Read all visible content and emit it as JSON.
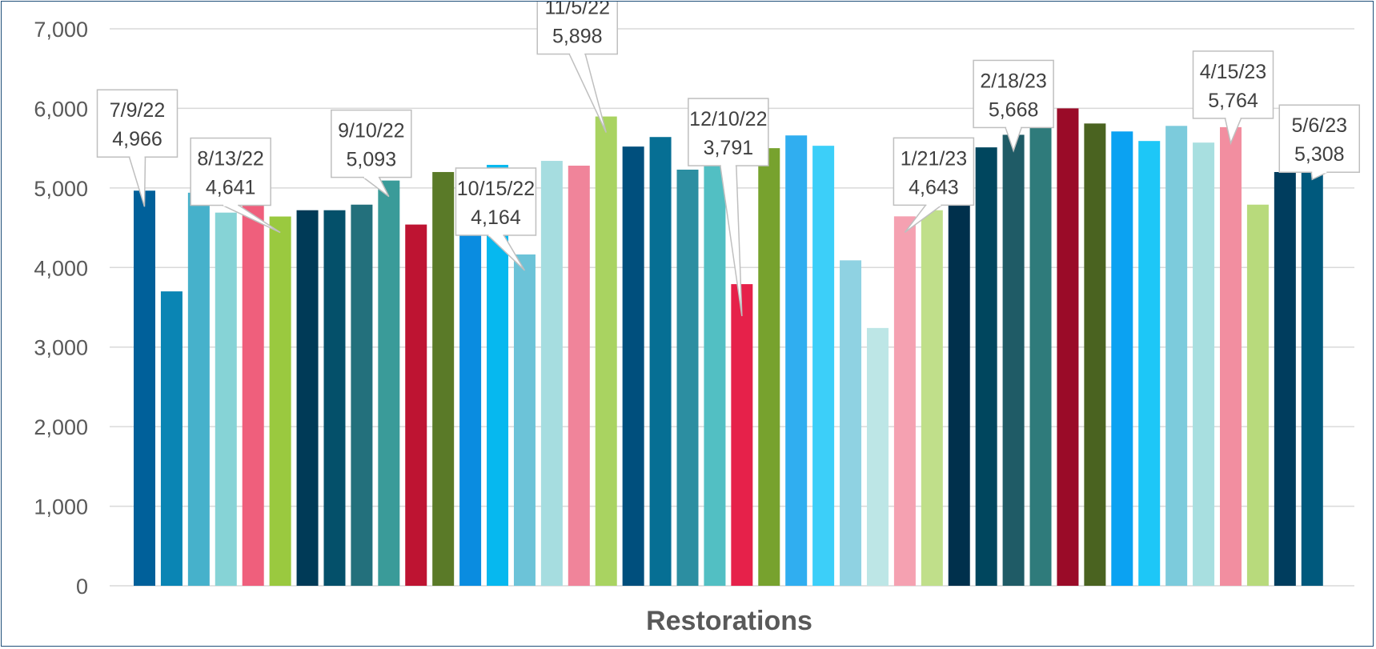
{
  "chart_data": {
    "type": "bar",
    "title": "",
    "xlabel": "Restorations",
    "ylabel": "",
    "ylim": [
      0,
      7000
    ],
    "yticks": [
      0,
      1000,
      2000,
      3000,
      4000,
      5000,
      6000,
      7000
    ],
    "ytick_labels": [
      "0",
      "1,000",
      "2,000",
      "3,000",
      "4,000",
      "5,000",
      "6,000",
      "7,000"
    ],
    "grid": true,
    "legend": "none",
    "values": [
      4966,
      3700,
      4940,
      4690,
      4930,
      4641,
      4720,
      4720,
      4790,
      5093,
      4540,
      5200,
      4800,
      5290,
      4164,
      5340,
      5280,
      5898,
      5520,
      5640,
      5230,
      5740,
      3791,
      5500,
      5660,
      5530,
      4090,
      3240,
      4643,
      4720,
      5530,
      5510,
      5668,
      5760,
      6000,
      5810,
      5710,
      5590,
      5780,
      5570,
      5764,
      4790,
      5200,
      5308
    ],
    "colors": [
      "#00609a",
      "#0a85b4",
      "#46b1cb",
      "#86d3d6",
      "#ef5f7c",
      "#9ac93f",
      "#003a57",
      "#04506a",
      "#23707c",
      "#3a9b99",
      "#be1432",
      "#5a7a28",
      "#0a8ce0",
      "#06b8ef",
      "#6cc3d8",
      "#a6dde0",
      "#f0849a",
      "#a9d361",
      "#004f7d",
      "#066f94",
      "#2c8ea1",
      "#52bfc3",
      "#e6214a",
      "#77a22e",
      "#30aef0",
      "#3ccff9",
      "#8fd2e2",
      "#bde6e6",
      "#f5a1b1",
      "#c0df8a",
      "#00304c",
      "#00465e",
      "#1f5b66",
      "#2f7b7b",
      "#9a0b28",
      "#4a6320",
      "#0ba2f2",
      "#1dc7f7",
      "#7ccbdc",
      "#a8dfe0",
      "#f28ea0",
      "#b8da7c",
      "#003d5e",
      "#00597d"
    ],
    "callouts": [
      {
        "index": 0,
        "date": "7/9/22",
        "value": "4,966"
      },
      {
        "index": 5,
        "date": "8/13/22",
        "value": "4,641"
      },
      {
        "index": 9,
        "date": "9/10/22",
        "value": "5,093"
      },
      {
        "index": 14,
        "date": "10/15/22",
        "value": "4,164"
      },
      {
        "index": 17,
        "date": "11/5/22",
        "value": "5,898"
      },
      {
        "index": 22,
        "date": "12/10/22",
        "value": "3,791"
      },
      {
        "index": 28,
        "date": "1/21/23",
        "value": "4,643"
      },
      {
        "index": 32,
        "date": "2/18/23",
        "value": "5,668"
      },
      {
        "index": 40,
        "date": "4/15/23",
        "value": "5,764"
      },
      {
        "index": 43,
        "date": "5/6/23",
        "value": "5,308"
      }
    ]
  }
}
